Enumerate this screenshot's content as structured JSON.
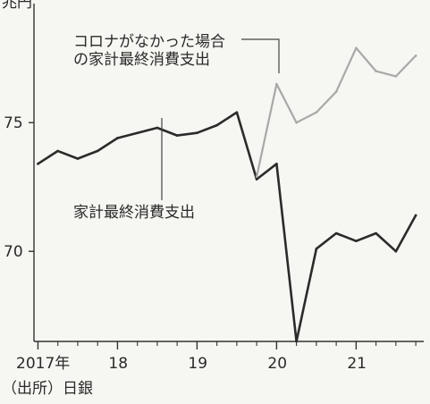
{
  "chart_data": {
    "type": "line",
    "title": "",
    "unit_label_top_left": "兆円",
    "xlabel": "",
    "ylabel": "",
    "ylim": [
      66.5,
      79
    ],
    "xlim": [
      2016.95,
      2021.85
    ],
    "y_ticks": [
      {
        "value": 75,
        "label": "75"
      },
      {
        "value": 70,
        "label": "70"
      }
    ],
    "x_ticks": [
      {
        "value": 2017.0,
        "label": "2017年"
      },
      {
        "value": 2018.0,
        "label": "18"
      },
      {
        "value": 2019.0,
        "label": "19"
      },
      {
        "value": 2020.0,
        "label": "20"
      },
      {
        "value": 2021.0,
        "label": "21"
      }
    ],
    "x_minor_ticks": [
      2017.25,
      2017.5,
      2017.75,
      2018.25,
      2018.5,
      2018.75,
      2019.25,
      2019.5,
      2019.75,
      2020.25,
      2020.5,
      2020.75,
      2021.25,
      2021.5,
      2021.75
    ],
    "series": [
      {
        "name": "家計最終消費支出",
        "color": "#2b2b2b",
        "x": [
          2017.0,
          2017.25,
          2017.5,
          2017.75,
          2018.0,
          2018.25,
          2018.5,
          2018.75,
          2019.0,
          2019.25,
          2019.5,
          2019.75,
          2020.0,
          2020.25,
          2020.5,
          2020.75,
          2021.0,
          2021.25,
          2021.5,
          2021.75
        ],
        "values": [
          73.4,
          73.9,
          73.6,
          73.9,
          74.4,
          74.6,
          74.8,
          74.5,
          74.6,
          74.9,
          75.4,
          72.8,
          73.4,
          66.5,
          70.1,
          70.7,
          70.4,
          70.7,
          70.0,
          71.4
        ]
      },
      {
        "name": "コロナがなかった場合の家計最終消費支出",
        "color": "#a8a8a8",
        "x": [
          2019.75,
          2020.0,
          2020.25,
          2020.5,
          2020.75,
          2021.0,
          2021.25,
          2021.5,
          2021.75
        ],
        "values": [
          72.9,
          76.5,
          75.0,
          75.4,
          76.2,
          77.9,
          77.0,
          76.8,
          77.6
        ]
      }
    ],
    "annotations": [
      {
        "id": "counterfactual",
        "lines": [
          "コロナがなかった場合",
          "の家計最終消費支出"
        ]
      },
      {
        "id": "actual",
        "lines": [
          "家計最終消費支出"
        ]
      }
    ],
    "source": "（出所）日銀",
    "grid": false
  }
}
